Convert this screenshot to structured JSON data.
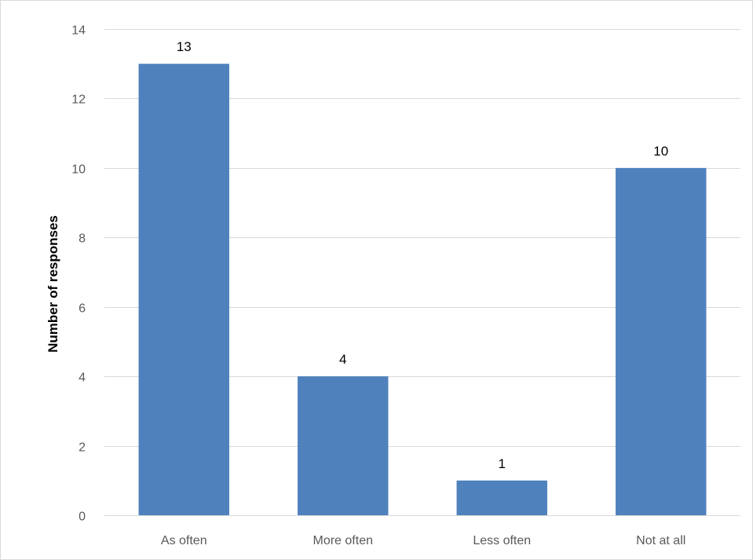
{
  "chart_data": {
    "type": "bar",
    "title": "",
    "xlabel": "",
    "ylabel": "Number of responses",
    "categories": [
      "As often",
      "More often",
      "Less often",
      "Not at all"
    ],
    "values": [
      13,
      4,
      1,
      10
    ],
    "data_labels": [
      "13",
      "4",
      "1",
      "10"
    ],
    "ylim": [
      0,
      14
    ],
    "yticks": [
      0,
      2,
      4,
      6,
      8,
      10,
      12,
      14
    ],
    "ytick_labels": [
      "0",
      "2",
      "4",
      "6",
      "8",
      "10",
      "12",
      "14"
    ],
    "grid": true,
    "legend": "none",
    "bar_color": "#4f81bd"
  }
}
